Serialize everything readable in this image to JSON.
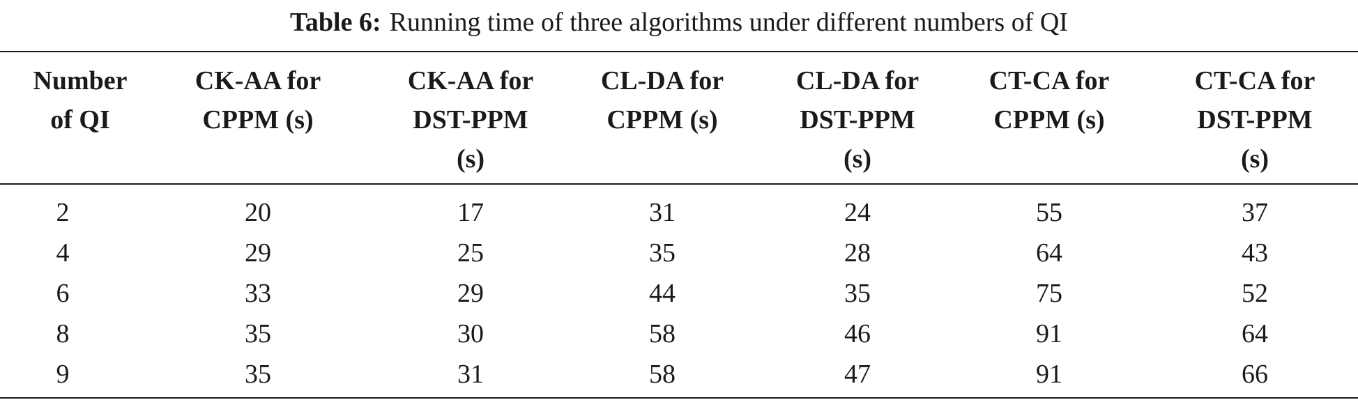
{
  "caption": {
    "label": "Table 6:",
    "text": "Running time of three algorithms under different numbers of QI"
  },
  "table": {
    "headers": [
      [
        "Number",
        "of QI"
      ],
      [
        "CK-AA for",
        "CPPM (s)"
      ],
      [
        "CK-AA for",
        "DST-PPM",
        "(s)"
      ],
      [
        "CL-DA for",
        "CPPM (s)"
      ],
      [
        "CL-DA for",
        "DST-PPM",
        "(s)"
      ],
      [
        "CT-CA for",
        "CPPM (s)"
      ],
      [
        "CT-CA for",
        "DST-PPM",
        "(s)"
      ]
    ],
    "rows": [
      [
        "2",
        "20",
        "17",
        "31",
        "24",
        "55",
        "37"
      ],
      [
        "4",
        "29",
        "25",
        "35",
        "28",
        "64",
        "43"
      ],
      [
        "6",
        "33",
        "29",
        "44",
        "35",
        "75",
        "52"
      ],
      [
        "8",
        "35",
        "30",
        "58",
        "46",
        "91",
        "64"
      ],
      [
        "9",
        "35",
        "31",
        "58",
        "47",
        "91",
        "66"
      ]
    ]
  }
}
